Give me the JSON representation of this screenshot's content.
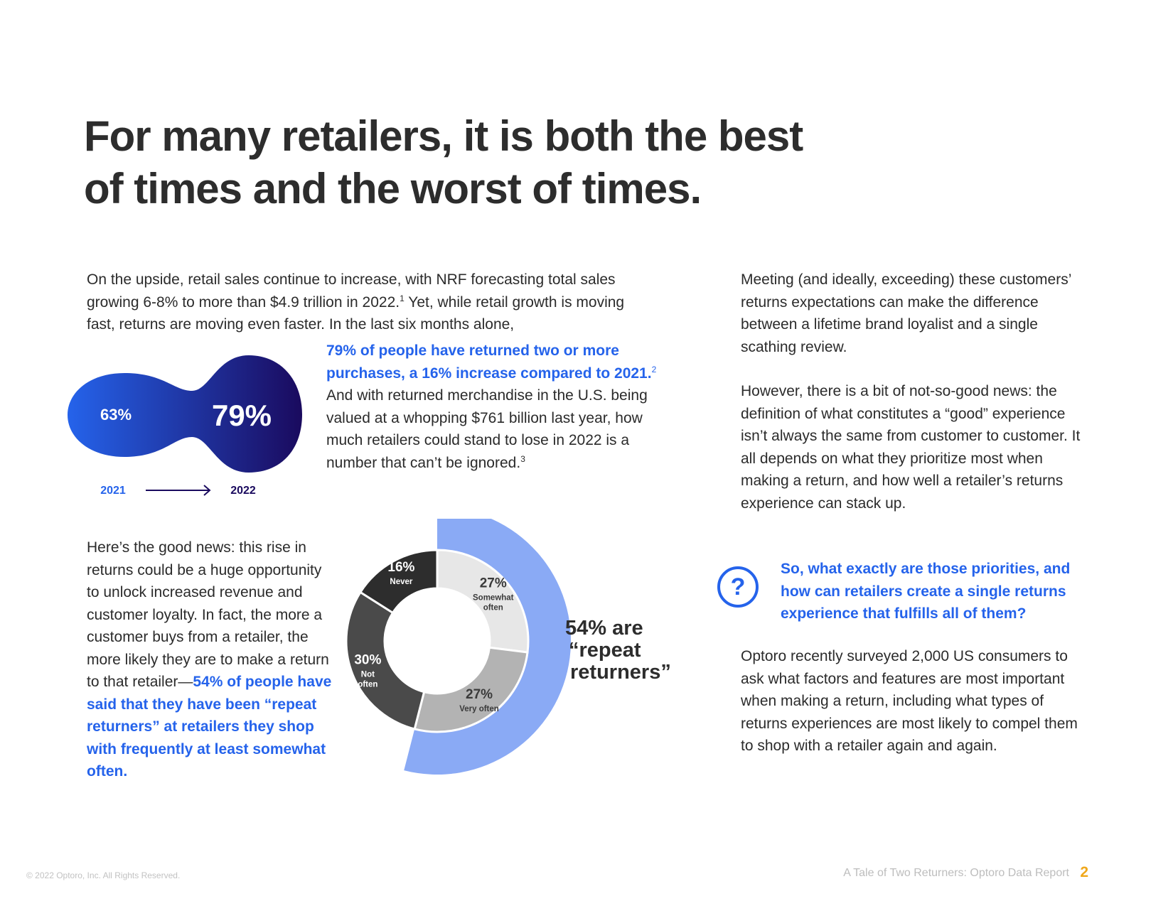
{
  "headline": {
    "line1": "For many retailers, it is both the best",
    "line2": "of times and the worst of times."
  },
  "intro": {
    "part1": "On the upside, retail sales continue to increase, with NRF forecasting total sales growing 6-8% to more than $4.9 trillion in 2022.",
    "footnote1": "1",
    "part2": " Yet, while retail growth is moving fast, returns are moving even faster. In the last six months alone,"
  },
  "stat_para": {
    "highlight": "79% of people have returned two or more purchases, a 16% increase compared to 2021.",
    "footnote2": "2",
    "part2": " And with returned merchandise in the U.S. being valued at a whopping $761 billion last year, how much retailers could stand to lose in 2022 is a number that can’t be ignored.",
    "footnote3": "3"
  },
  "blob": {
    "value_2021": "63%",
    "value_2022": "79%",
    "year_2021": "2021",
    "year_2022": "2022",
    "color_start": "#2563eb",
    "color_end": "#1a0a5e"
  },
  "good_news": {
    "part1": "Here’s the good news: this rise in returns could be a huge opportunity to unlock increased revenue and customer loyalty. In fact, the more a customer buys from a retailer, the more likely they are to make a return to that retailer—",
    "highlight": "54% of people have said that they have been “repeat returners” at retailers they shop with frequently at least somewhat often."
  },
  "chart_data": {
    "type": "pie",
    "variant": "donut",
    "segments": [
      {
        "label": "Somewhat often",
        "value": 27,
        "display": "27%",
        "label_lines": [
          "Somewhat",
          "often"
        ],
        "color": "#e7e7e7",
        "text_color": "#3a3a3a"
      },
      {
        "label": "Very often",
        "value": 27,
        "display": "27%",
        "label_lines": [
          "Very often"
        ],
        "color": "#b3b3b3",
        "text_color": "#3a3a3a"
      },
      {
        "label": "Not often",
        "value": 30,
        "display": "30%",
        "label_lines": [
          "Not",
          "often"
        ],
        "color": "#4a4a4a",
        "text_color": "#ffffff"
      },
      {
        "label": "Never",
        "value": 16,
        "display": "16%",
        "label_lines": [
          "Never"
        ],
        "color": "#2d2d2d",
        "text_color": "#ffffff"
      }
    ],
    "highlight_group": {
      "label_lines": [
        "54% are",
        "“repeat",
        "returners”"
      ],
      "value": 54,
      "color": "#8aaaf5"
    }
  },
  "right_top": "Meeting (and ideally, exceeding) these customers’ returns expectations can make the difference between a lifetime brand loyalist and a single scathing review.",
  "right_mid": "However, there is a bit of not-so-good news: the definition of what constitutes a “good” experience isn’t always the same from customer to customer. It all depends on what they prioritize most when making a return, and how well a retailer’s returns experience can stack up.",
  "callout": {
    "icon_glyph": "?",
    "text": "So, what exactly are those priorities, and how can retailers create a single returns experience that fulfills all of them?"
  },
  "right_bottom": "Optoro recently surveyed 2,000 US consumers to ask what factors and features are most important when making a return, including what types of returns experiences are most likely to compel them to shop with a retailer again and again.",
  "footer": {
    "copyright": "© 2022 Optoro, Inc. All Rights Reserved.",
    "report_title": "A Tale of Two Returners: Optoro Data Report",
    "page_number": "2"
  }
}
